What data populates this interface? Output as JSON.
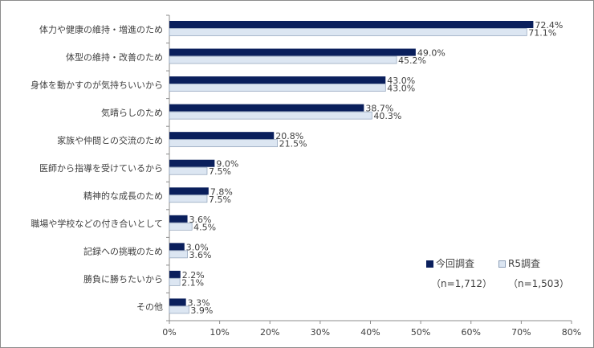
{
  "chart_data": {
    "type": "bar",
    "orientation": "horizontal",
    "categories": [
      "体力や健康の維持・増進のため",
      "体型の維持・改善のため",
      "身体を動かすのが気持ちいいから",
      "気晴らしのため",
      "家族や仲間との交流のため",
      "医師から指導を受けているから",
      "精神的な成長のため",
      "職場や学校などの付き合いとして",
      "記録への挑戦のため",
      "勝負に勝ちたいから",
      "その他"
    ],
    "series": [
      {
        "name": "今回調査",
        "n_label": "（n=1,712）",
        "color": "#0a1f5c",
        "values": [
          72.4,
          49.0,
          43.0,
          38.7,
          20.8,
          9.0,
          7.8,
          3.6,
          3.0,
          2.2,
          3.3
        ]
      },
      {
        "name": "R5調査",
        "n_label": "（n=1,503）",
        "color": "#dce6f2",
        "values": [
          71.1,
          45.2,
          43.0,
          40.3,
          21.5,
          7.5,
          7.5,
          4.5,
          3.6,
          2.1,
          3.9
        ]
      }
    ],
    "xlim": [
      0,
      80
    ],
    "xticks": [
      "0%",
      "10%",
      "20%",
      "30%",
      "40%",
      "50%",
      "60%",
      "70%",
      "80%"
    ],
    "grid": false,
    "legend_position": "bottom-right"
  }
}
